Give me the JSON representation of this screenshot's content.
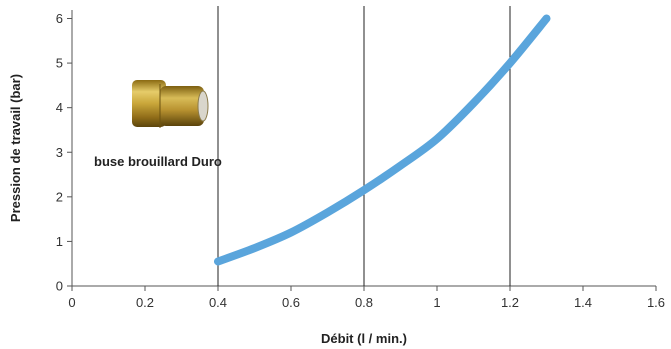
{
  "chart_data": {
    "type": "line",
    "title": "",
    "xlabel": "Débit (l / min.)",
    "ylabel": "Pression de travail (bar)",
    "xlim": [
      0,
      1.6
    ],
    "ylim": [
      0,
      6
    ],
    "x_ticks": [
      "0",
      "0.2",
      "0.4",
      "0.6",
      "0.8",
      "1",
      "1.2",
      "1.4",
      "1.6"
    ],
    "y_ticks": [
      "0",
      "1",
      "2",
      "3",
      "4",
      "5",
      "6"
    ],
    "grid": "vertical lines at 0.4, 0.8, 1.2",
    "legend": "none",
    "annotation": "buse brouillard Duro",
    "series_color": "#5aa5dc",
    "series": [
      {
        "x": [
          0.4,
          0.5,
          0.6,
          0.7,
          0.8,
          0.9,
          1.0,
          1.1,
          1.2,
          1.3
        ],
        "y": [
          0.55,
          0.85,
          1.2,
          1.65,
          2.15,
          2.7,
          3.3,
          4.1,
          5.0,
          6.0
        ]
      }
    ]
  }
}
